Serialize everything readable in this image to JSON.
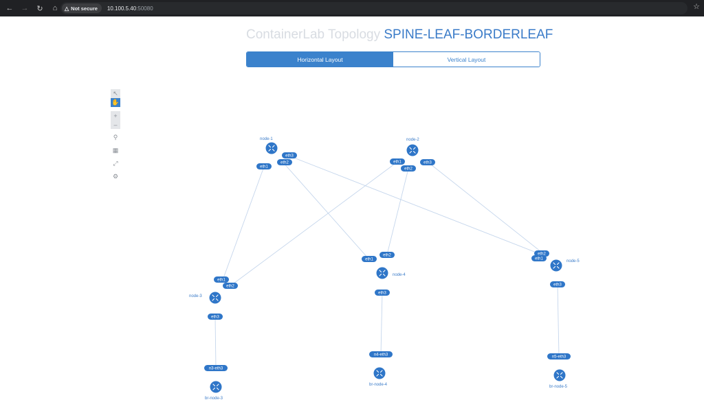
{
  "browser": {
    "secure_label": "Not secure",
    "url_host": "10.100.5.40",
    "url_port": ":50080"
  },
  "header": {
    "title_prefix": "ContainerLab Topology",
    "title_name": "SPINE-LEAF-BORDERLEAF"
  },
  "layout": {
    "horizontal": "Horizontal Layout",
    "vertical": "Vertical Layout"
  },
  "nodes": [
    {
      "id": "node-1",
      "label": "node-1"
    },
    {
      "id": "node-2",
      "label": "node-2"
    },
    {
      "id": "node-3",
      "label": "node-3"
    },
    {
      "id": "node-4",
      "label": "node-4"
    },
    {
      "id": "node-5",
      "label": "node-5"
    },
    {
      "id": "br-node-3",
      "label": "br-node-3"
    },
    {
      "id": "br-node-4",
      "label": "br-node-4"
    },
    {
      "id": "br-node-5",
      "label": "br-node-5"
    }
  ],
  "interfaces": {
    "n1_eth1": "eth1",
    "n1_eth2": "eth2",
    "n1_eth3": "eth3",
    "n2_eth1": "eth1",
    "n2_eth2": "eth2",
    "n2_eth3": "eth3",
    "n3_eth1": "eth1",
    "n3_eth2": "eth2",
    "n3_eth3": "eth3",
    "n4_eth1": "eth1",
    "n4_eth2": "eth2",
    "n4_eth3": "eth3",
    "n5_eth1": "eth1",
    "n5_eth2": "eth2",
    "n5_eth3": "eth3",
    "br3": "n3-eth3",
    "br4": "n4-eth3",
    "br5": "n5-eth3"
  },
  "icons": {
    "back": "arrow-left-icon",
    "forward": "arrow-right-icon",
    "reload": "reload-icon",
    "home": "home-icon",
    "bookmark": "star-icon",
    "select": "select-icon",
    "pan": "hand-icon",
    "zoom_in": "plus-icon",
    "zoom_out": "minus-icon",
    "zoom_region": "zoom-region-icon",
    "fit": "fit-icon",
    "fullscreen": "fullscreen-icon",
    "settings": "gear-icon",
    "router": "router-icon"
  },
  "colors": {
    "accent": "#3b82cc",
    "node": "#2f76c8",
    "link": "#c5d6ec"
  }
}
